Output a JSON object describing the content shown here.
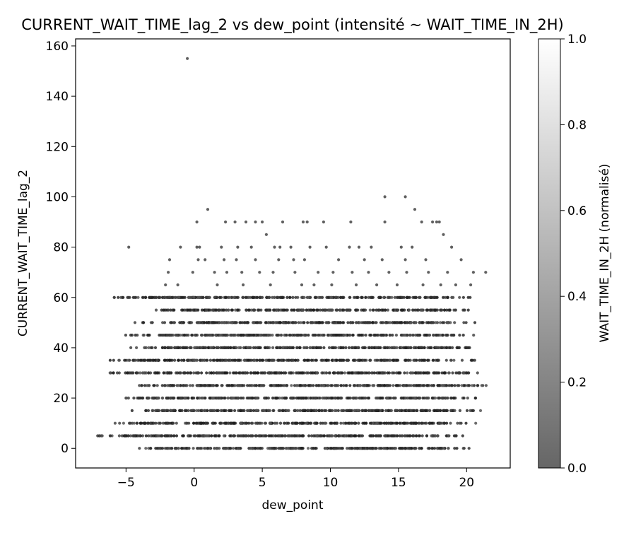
{
  "chart_data": {
    "type": "scatter",
    "title": "CURRENT_WAIT_TIME_lag_2 vs dew_point (intensité ~ WAIT_TIME_IN_2H)",
    "xlabel": "dew_point",
    "ylabel": "CURRENT_WAIT_TIME_lag_2",
    "xlim": [
      -8.7,
      23.2
    ],
    "ylim": [
      -7.8,
      162.8
    ],
    "xticks": [
      -5,
      0,
      5,
      10,
      15,
      20
    ],
    "yticks": [
      0,
      20,
      40,
      60,
      80,
      100,
      120,
      140,
      160
    ],
    "grid": false,
    "colormap": "gray",
    "colorbar": {
      "label": "WAIT_TIME_IN_2H (normalisé)",
      "range": [
        0,
        1
      ],
      "ticks": [
        "0.0",
        "0.2",
        "0.4",
        "0.6",
        "0.8",
        "1.0"
      ]
    },
    "point_color": "#2b2b2b",
    "bands": [
      {
        "y": 0,
        "x": [
          -4.8,
          20.8
        ]
      },
      {
        "y": 5,
        "x": [
          -7.4,
          20.8
        ]
      },
      {
        "y": 10,
        "x": [
          -6.8,
          21.1
        ]
      },
      {
        "y": 15,
        "x": [
          -5.0,
          21.3
        ]
      },
      {
        "y": 20,
        "x": [
          -6.3,
          21.3
        ]
      },
      {
        "y": 25,
        "x": [
          -5.0,
          21.9
        ]
      },
      {
        "y": 30,
        "x": [
          -6.7,
          21.5
        ]
      },
      {
        "y": 35,
        "x": [
          -7.3,
          20.8
        ]
      },
      {
        "y": 40,
        "x": [
          -5.0,
          21.1
        ]
      },
      {
        "y": 45,
        "x": [
          -5.3,
          21.1
        ]
      },
      {
        "y": 50,
        "x": [
          -4.8,
          21.5
        ]
      },
      {
        "y": 55,
        "x": [
          -3.5,
          20.6
        ]
      },
      {
        "y": 60,
        "x": [
          -6.5,
          20.5
        ]
      }
    ],
    "sparse_points": [
      [
        -0.5,
        155
      ],
      [
        14,
        100
      ],
      [
        15.5,
        100
      ],
      [
        1,
        95
      ],
      [
        16.2,
        95
      ],
      [
        0.2,
        90
      ],
      [
        2.3,
        90
      ],
      [
        3,
        90
      ],
      [
        3.8,
        90
      ],
      [
        4.5,
        90
      ],
      [
        5,
        90
      ],
      [
        6.5,
        90
      ],
      [
        8,
        90
      ],
      [
        8.3,
        90
      ],
      [
        9.5,
        90
      ],
      [
        11.5,
        90
      ],
      [
        14,
        90
      ],
      [
        16.7,
        90
      ],
      [
        17.5,
        90
      ],
      [
        17.8,
        90
      ],
      [
        18,
        90
      ],
      [
        5.3,
        85
      ],
      [
        18.3,
        85
      ],
      [
        -4.8,
        80
      ],
      [
        -1,
        80
      ],
      [
        0.2,
        80
      ],
      [
        0.4,
        80
      ],
      [
        2,
        80
      ],
      [
        3.2,
        80
      ],
      [
        4.2,
        80
      ],
      [
        5.9,
        80
      ],
      [
        6.3,
        80
      ],
      [
        7.1,
        80
      ],
      [
        8.5,
        80
      ],
      [
        9.7,
        80
      ],
      [
        11.4,
        80
      ],
      [
        12.1,
        80
      ],
      [
        13,
        80
      ],
      [
        15.2,
        80
      ],
      [
        16,
        80
      ],
      [
        18.9,
        80
      ],
      [
        -1.8,
        75
      ],
      [
        0.3,
        75
      ],
      [
        0.8,
        75
      ],
      [
        2.2,
        75
      ],
      [
        3.1,
        75
      ],
      [
        4.5,
        75
      ],
      [
        6.2,
        75
      ],
      [
        7.3,
        75
      ],
      [
        8.1,
        75
      ],
      [
        10.6,
        75
      ],
      [
        12.5,
        75
      ],
      [
        13.8,
        75
      ],
      [
        15.5,
        75
      ],
      [
        17,
        75
      ],
      [
        19.6,
        75
      ],
      [
        -1.9,
        70
      ],
      [
        -0.1,
        70
      ],
      [
        1.5,
        70
      ],
      [
        2.4,
        70
      ],
      [
        3.5,
        70
      ],
      [
        4.8,
        70
      ],
      [
        5.8,
        70
      ],
      [
        7.4,
        70
      ],
      [
        9.1,
        70
      ],
      [
        10.2,
        70
      ],
      [
        11.6,
        70
      ],
      [
        12.8,
        70
      ],
      [
        14.3,
        70
      ],
      [
        15.6,
        70
      ],
      [
        17.2,
        70
      ],
      [
        18.6,
        70
      ],
      [
        20.5,
        70
      ],
      [
        21.4,
        70
      ],
      [
        -2.1,
        65
      ],
      [
        -1.2,
        65
      ],
      [
        1.7,
        65
      ],
      [
        3.6,
        65
      ],
      [
        5.6,
        65
      ],
      [
        7.9,
        65
      ],
      [
        8.8,
        65
      ],
      [
        10.1,
        65
      ],
      [
        11.9,
        65
      ],
      [
        13.4,
        65
      ],
      [
        14.9,
        65
      ],
      [
        16.8,
        65
      ],
      [
        18.1,
        65
      ],
      [
        19.2,
        65
      ],
      [
        20.3,
        65
      ]
    ]
  }
}
